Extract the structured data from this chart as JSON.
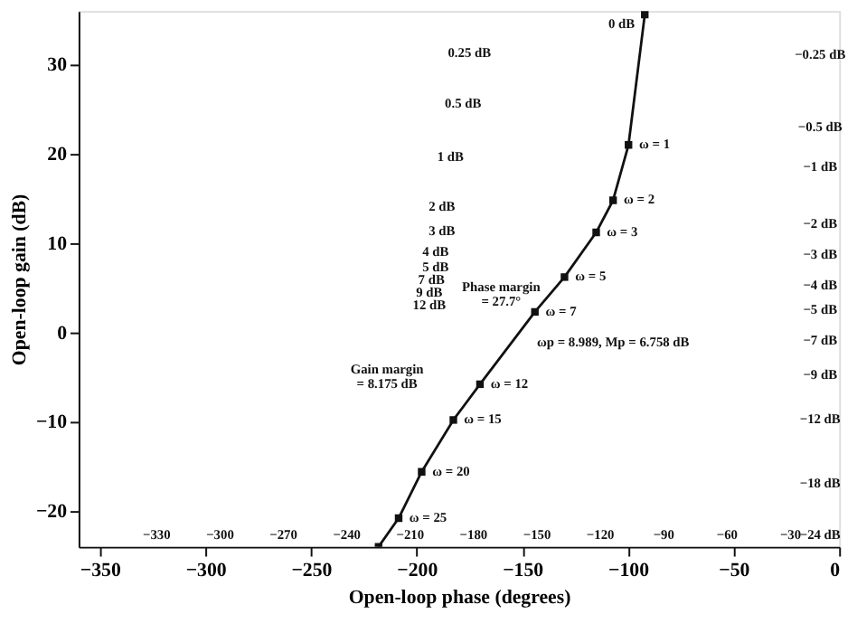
{
  "chart_data": {
    "type": "line",
    "xlabel": "Open-loop phase (degrees)",
    "ylabel": "Open-loop gain (dB)",
    "series": [
      {
        "color": "#111111",
        "x": [
          -92,
          -99.7,
          -107,
          -115,
          -130,
          -144,
          -170,
          -182.6,
          -197.6,
          -208.5,
          -218
        ],
        "values": [
          35.6,
          21.0,
          14.8,
          11.2,
          6.2,
          2.3,
          -5.8,
          -9.8,
          -15.6,
          -20.8,
          -24
        ]
      }
    ],
    "xlim": [
      -360,
      0
    ],
    "ylim": [
      -24,
      36
    ],
    "xticks": [
      -350,
      -300,
      -250,
      -200,
      -150,
      -100,
      -50,
      0
    ],
    "yticks": [
      -20,
      -10,
      0,
      10,
      20,
      30
    ],
    "grid": false,
    "marker": "square",
    "line_style": "solid",
    "annotations": [
      {
        "text": "ω = 1",
        "x": -99.7,
        "y": 21.0
      },
      {
        "text": "ω = 2",
        "x": -107,
        "y": 14.8
      },
      {
        "text": "ω = 3",
        "x": -115,
        "y": 11.2
      },
      {
        "text": "ω = 5",
        "x": -130,
        "y": 6.2
      },
      {
        "text": "ω = 7",
        "x": -144,
        "y": 2.3
      },
      {
        "text": "ω = 12",
        "x": -170,
        "y": -5.8
      },
      {
        "text": "ω = 15",
        "x": -182.6,
        "y": -9.8
      },
      {
        "text": "ω = 20",
        "x": -197.6,
        "y": -15.6
      },
      {
        "text": "ω = 25",
        "x": -208.5,
        "y": -20.8
      },
      "ωp = 8.989, Mp = 6.758 dB",
      "Phase margin\n= 27.7°",
      "Gain margin\n= 8.175 dB",
      "0 dB",
      "0.25 dB",
      "0.5 dB",
      "1 dB",
      "2 dB",
      "3 dB",
      "4 dB",
      "5 dB",
      "7 dB",
      "9 dB",
      "12 dB",
      "−0.25 dB",
      "−0.5 dB",
      "−1 dB",
      "−2 dB",
      "−3 dB",
      "−4 dB",
      "−5 dB",
      "−7 dB",
      "−9 dB",
      "−12 dB",
      "−18 dB",
      "−24 dB",
      "−330",
      "−300",
      "−270",
      "−240",
      "−210",
      "−180",
      "−150",
      "−120",
      "−90",
      "−60",
      "−30"
    ]
  }
}
